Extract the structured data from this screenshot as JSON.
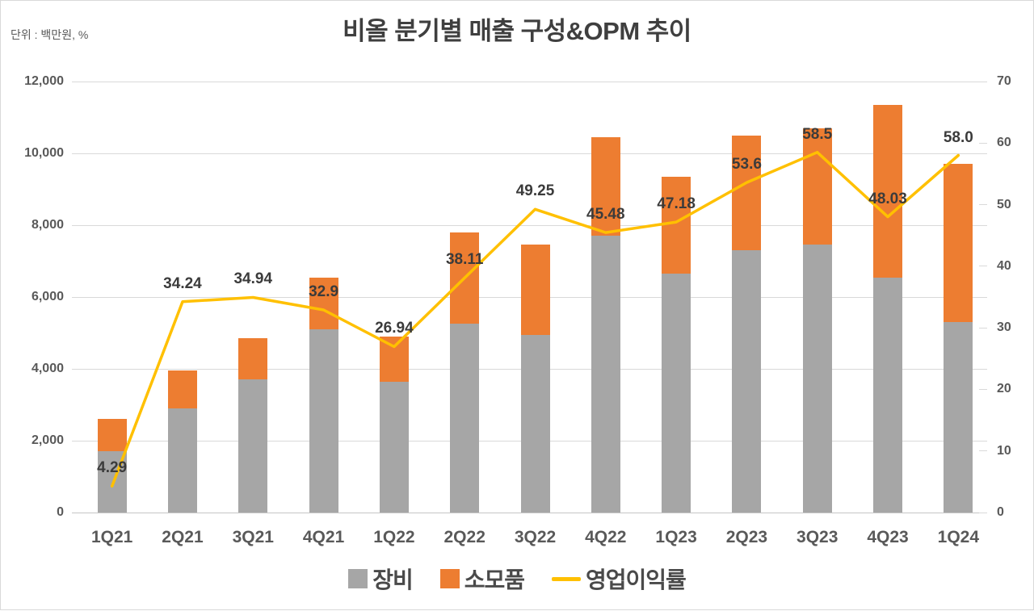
{
  "title": "비올 분기별 매출 구성&OPM 추이",
  "unit_label": "단위 : 백만원, %",
  "colors": {
    "equipment_bar": "#A6A6A6",
    "consumables_bar": "#ED7D31",
    "opm_line": "#FFC000",
    "gridline": "#D9D9D9",
    "axis_text": "#595959",
    "title_text": "#3F3F3F",
    "data_label_text": "#3B3B3B"
  },
  "legend": {
    "items": [
      {
        "label": "장비",
        "swatch": "gray-square"
      },
      {
        "label": "소모품",
        "swatch": "orange-square"
      },
      {
        "label": "영업이익률",
        "swatch": "yellow-line"
      }
    ]
  },
  "chart_data": {
    "type": "bar",
    "subtype": "stacked-bar-with-line",
    "title": "비올 분기별 매출 구성&OPM 추이",
    "unit": "백만원, %",
    "categories": [
      "1Q21",
      "2Q21",
      "3Q21",
      "4Q21",
      "1Q22",
      "2Q22",
      "3Q22",
      "4Q22",
      "1Q23",
      "2Q23",
      "3Q23",
      "4Q23",
      "1Q24"
    ],
    "series": [
      {
        "name": "장비",
        "type": "bar",
        "stack": true,
        "axis": "left",
        "color": "#A6A6A6",
        "values": [
          1700,
          2900,
          3700,
          5100,
          3650,
          5250,
          4950,
          7700,
          6650,
          7300,
          7450,
          6550,
          5300
        ]
      },
      {
        "name": "소모품",
        "type": "bar",
        "stack": true,
        "axis": "left",
        "color": "#ED7D31",
        "values": [
          900,
          1050,
          1150,
          1450,
          1250,
          2550,
          2500,
          2750,
          2700,
          3200,
          3250,
          4800,
          4400
        ]
      },
      {
        "name": "영업이익률",
        "type": "line",
        "axis": "right",
        "color": "#FFC000",
        "values": [
          4.29,
          34.24,
          34.94,
          32.9,
          26.94,
          38.11,
          49.25,
          45.48,
          47.18,
          53.6,
          58.5,
          48.03,
          58.0
        ],
        "labels": [
          "4.29",
          "34.24",
          "34.94",
          "32.9",
          "26.94",
          "38.11",
          "49.25",
          "45.48",
          "47.18",
          "53.6",
          "58.5",
          "48.03",
          "58.0"
        ]
      }
    ],
    "left_axis": {
      "min": 0,
      "max": 12000,
      "step": 2000,
      "tick_labels": [
        "0",
        "2,000",
        "4,000",
        "6,000",
        "8,000",
        "10,000",
        "12,000"
      ]
    },
    "right_axis": {
      "min": 0,
      "max": 70,
      "step": 10,
      "tick_labels": [
        "0",
        "10",
        "20",
        "30",
        "40",
        "50",
        "60",
        "70"
      ]
    },
    "grid": "horizontal-only",
    "legend_position": "bottom"
  }
}
